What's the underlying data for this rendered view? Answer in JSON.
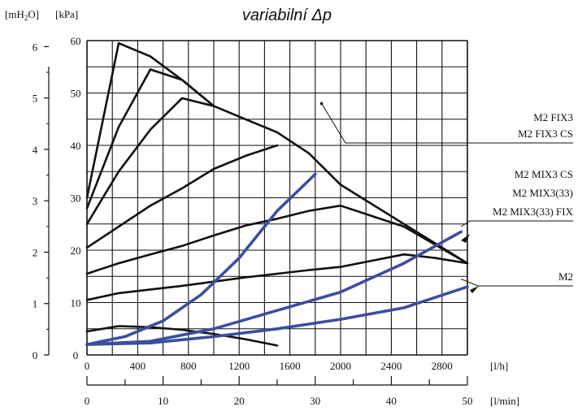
{
  "chart_data": {
    "type": "line",
    "title": "variabilní Δp",
    "y_units": {
      "mh2o": "[mH",
      "mh2o_sub": "2",
      "mh2o_end": "O]",
      "kpa": "[kPa]"
    },
    "x_units": {
      "lh": "[l/h]",
      "lmin": "[l/min]"
    },
    "xlim_lh": [
      0,
      3000
    ],
    "ylim_kpa": [
      0,
      60
    ],
    "grid": true,
    "x_ticks_lh": [
      "0",
      "400",
      "800",
      "1200",
      "1600",
      "2000",
      "2400",
      "2800"
    ],
    "x_ticks_lmin": [
      "0",
      "10",
      "20",
      "30",
      "40",
      "50"
    ],
    "y_ticks_kpa": [
      "0",
      "10",
      "20",
      "30",
      "40",
      "50",
      "60"
    ],
    "y_ticks_mh2o": [
      "0",
      "1",
      "2",
      "3",
      "4",
      "5",
      "6"
    ],
    "pump_curves_color": "#111111",
    "system_curves_color": "#3a4f9e",
    "pump_curves": [
      {
        "x": [
          0,
          250,
          500,
          750,
          1000,
          1250,
          1500
        ],
        "y": [
          4.5,
          5.5,
          5.3,
          4.8,
          4.0,
          3.0,
          1.8
        ]
      },
      {
        "x": [
          0,
          250,
          500,
          750,
          1000,
          1250,
          1500,
          1750,
          2000,
          2250,
          2500,
          2750,
          3000
        ],
        "y": [
          10.5,
          11.8,
          12.5,
          13.2,
          14.0,
          14.8,
          15.5,
          16.2,
          16.8,
          18.0,
          19.2,
          18.5,
          17.5
        ]
      },
      {
        "x": [
          0,
          250,
          500,
          750,
          1000,
          1250,
          1500,
          1750,
          2000,
          2250,
          2500,
          2750,
          3000
        ],
        "y": [
          15.5,
          17.5,
          19.2,
          20.8,
          22.8,
          24.7,
          26.0,
          27.5,
          28.5,
          26.5,
          24.5,
          21.0,
          17.5
        ]
      },
      {
        "x": [
          0,
          250,
          500,
          750,
          1000,
          1250,
          1500
        ],
        "y": [
          20.5,
          24.5,
          28.5,
          31.8,
          35.5,
          38.0,
          40.0
        ]
      },
      {
        "x": [
          0,
          250,
          500,
          750,
          1000,
          1250,
          1500,
          1750,
          2000,
          2500,
          3000
        ],
        "y": [
          25.0,
          35.0,
          43.0,
          49.0,
          47.5,
          45.0,
          42.5,
          38.5,
          32.5,
          25.0,
          17.5
        ]
      },
      {
        "x": [
          0,
          250,
          500,
          750,
          1000
        ],
        "y": [
          28.0,
          43.5,
          54.5,
          52.5,
          47.5
        ]
      },
      {
        "x": [
          0,
          250,
          500,
          750,
          1000
        ],
        "y": [
          30.0,
          59.5,
          57.0,
          52.5,
          47.5
        ]
      }
    ],
    "system_curves": [
      {
        "x": [
          0,
          300,
          600,
          900,
          1200,
          1500,
          1800
        ],
        "y": [
          2.0,
          3.5,
          6.5,
          11.5,
          18.5,
          27.5,
          34.5
        ]
      },
      {
        "x": [
          0,
          500,
          1000,
          1500,
          2000,
          2500,
          2950
        ],
        "y": [
          2.0,
          2.6,
          5.0,
          8.5,
          12.0,
          17.5,
          23.5
        ]
      },
      {
        "x": [
          0,
          500,
          1000,
          1500,
          2000,
          2500,
          3000
        ],
        "y": [
          2.0,
          2.3,
          3.5,
          5.0,
          6.8,
          9.0,
          13.0
        ]
      }
    ],
    "annotations": [
      {
        "text": "M2 FIX3",
        "arrow_x": 1850,
        "arrow_y": 48
      },
      {
        "text": "M2 FIX3 CS"
      },
      {
        "text": "M2 MIX3 CS"
      },
      {
        "text": "M2 MIX3(33)"
      },
      {
        "text": "M2 MIX3(33) FIX",
        "arrow_x": 2950,
        "arrow_y": 24.5
      },
      {
        "text": "M2",
        "arrow_x": 2950,
        "arrow_y": 14.5
      }
    ]
  }
}
